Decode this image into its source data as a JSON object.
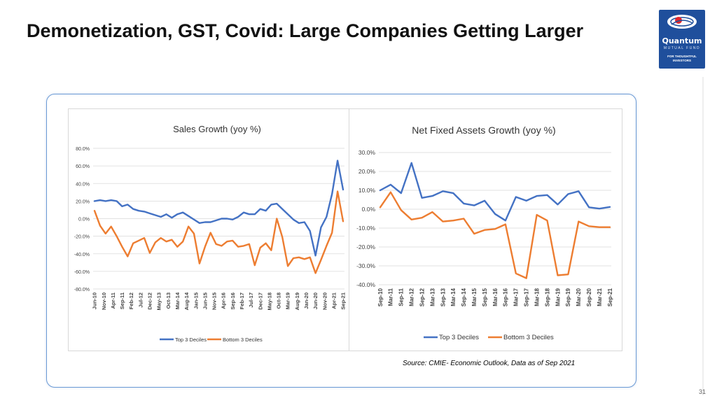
{
  "slide": {
    "title": "Demonetization, GST, Covid: Large Companies Getting Larger",
    "source": "Source: CMIE- Economic Outlook, Data as of Sep 2021",
    "page_number": "31",
    "logo": {
      "brand": "Quantum",
      "sub": "MUTUAL FUND",
      "tag1": "FOR THOUGHTFUL",
      "tag2": "INVESTORS"
    }
  },
  "chart_data": [
    {
      "type": "line",
      "title": "Sales Growth (yoy %)",
      "ylim": [
        -80,
        80
      ],
      "yticks": [
        "80.0%",
        "60.0%",
        "40.0%",
        "20.0%",
        "0.0%",
        "-20.0%",
        "-40.0%",
        "-60.0%",
        "-80.0%"
      ],
      "xticks": [
        "Jun-10",
        "Nov-10",
        "Apr-11",
        "Sep-11",
        "Feb-12",
        "Jul-12",
        "Dec-12",
        "May-13",
        "Oct-13",
        "Mar-14",
        "Aug-14",
        "Jan-15",
        "Jun-15",
        "Nov-15",
        "Apr-16",
        "Sep-16",
        "Feb-17",
        "Jul-17",
        "Dec-17",
        "May-18",
        "Oct-18",
        "Mar-19",
        "Aug-19",
        "Jan-20",
        "Jun-20",
        "Nov-20",
        "Apr-21",
        "Sep-21"
      ],
      "grid": true,
      "legend_position": "bottom",
      "series": [
        {
          "name": "Top 3 Deciles",
          "color": "#4472c4",
          "values": [
            20,
            21,
            20,
            21,
            20,
            14,
            16,
            11,
            9,
            8,
            6,
            4,
            2,
            5,
            1,
            5,
            7,
            3,
            -1,
            -5,
            -4,
            -4,
            -2,
            0,
            0,
            -1,
            2,
            7,
            5,
            5,
            11,
            9,
            16,
            17,
            11,
            5,
            -1,
            -5,
            -4,
            -14,
            -42,
            -10,
            2,
            28,
            66,
            33
          ]
        },
        {
          "name": "Bottom 3 Deciles",
          "color": "#ed7d31",
          "values": [
            9,
            -8,
            -17,
            -9,
            -20,
            -32,
            -43,
            -28,
            -25,
            -22,
            -39,
            -27,
            -22,
            -26,
            -24,
            -32,
            -26,
            -9,
            -17,
            -51,
            -32,
            -16,
            -29,
            -31,
            -26,
            -25,
            -32,
            -31,
            -29,
            -53,
            -33,
            -28,
            -36,
            0,
            -21,
            -54,
            -45,
            -44,
            -46,
            -44,
            -62,
            -47,
            -31,
            -16,
            31,
            -3
          ]
        }
      ]
    },
    {
      "type": "line",
      "title": "Net Fixed Assets Growth (yoy %)",
      "ylim": [
        -40,
        30
      ],
      "yticks": [
        "30.0%",
        "20.0%",
        "10.0%",
        "0.0%",
        "-10.0%",
        "-20.0%",
        "-30.0%",
        "-40.0%"
      ],
      "xticks": [
        "Sep-10",
        "Mar-11",
        "Sep-11",
        "Mar-12",
        "Sep-12",
        "Mar-13",
        "Sep-13",
        "Mar-14",
        "Sep-14",
        "Mar-15",
        "Sep-15",
        "Mar-16",
        "Sep-16",
        "Mar-17",
        "Sep-17",
        "Mar-18",
        "Sep-18",
        "Mar-19",
        "Sep-19",
        "Mar-20",
        "Sep-20",
        "Mar-21",
        "Sep-21"
      ],
      "grid": true,
      "legend_position": "bottom",
      "series": [
        {
          "name": "Top 3 Deciles",
          "color": "#4472c4",
          "values": [
            10,
            13,
            8.5,
            24.5,
            6,
            7,
            9.5,
            8.5,
            3,
            2,
            4.5,
            -2.5,
            -6,
            6.5,
            4.5,
            7,
            7.5,
            2.5,
            8,
            9.5,
            1,
            0.3,
            1.2
          ]
        },
        {
          "name": "Bottom 3 Deciles",
          "color": "#ed7d31",
          "values": [
            1,
            9,
            -0.5,
            -5.5,
            -4.5,
            -1.5,
            -6.5,
            -6,
            -5,
            -13,
            -11,
            -10.5,
            -8,
            -34,
            -36.5,
            -3,
            -6,
            -35,
            -34.5,
            -6.5,
            -9,
            -9.5,
            -9.5
          ]
        }
      ]
    }
  ]
}
